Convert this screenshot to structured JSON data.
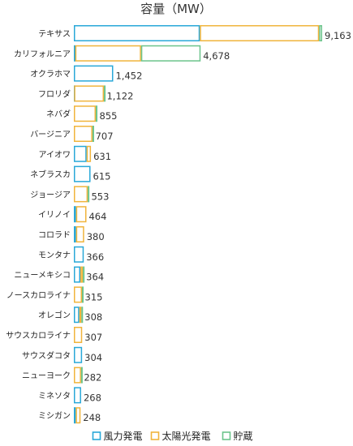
{
  "chart_data": {
    "type": "bar",
    "orientation": "horizontal",
    "stacked": true,
    "title": "容量（MW）",
    "categories": [
      "テキサス",
      "カリフォルニア",
      "オクラホマ",
      "フロリダ",
      "ネバダ",
      "バージニア",
      "アイオワ",
      "ネブラスカ",
      "ジョージア",
      "イリノイ",
      "コロラド",
      "モンタナ",
      "ニューメキシコ",
      "ノースカロライナ",
      "オレゴン",
      "サウスカロライナ",
      "サウスダコタ",
      "ニューヨーク",
      "ミネソタ",
      "ミシガン"
    ],
    "series": [
      {
        "name": "風力発電",
        "color": "#29a8d8",
        "values": [
          4650,
          50,
          1452,
          10,
          0,
          0,
          470,
          615,
          0,
          80,
          80,
          366,
          240,
          0,
          200,
          0,
          304,
          0,
          268,
          70
        ]
      },
      {
        "name": "太陽光発電",
        "color": "#f0b43c",
        "values": [
          4400,
          2430,
          0,
          1100,
          810,
          687,
          161,
          0,
          513,
          384,
          300,
          0,
          94,
          300,
          78,
          307,
          0,
          266,
          0,
          178
        ]
      },
      {
        "name": "貯蔵",
        "color": "#6cc48c",
        "values": [
          113,
          2198,
          0,
          12,
          45,
          20,
          0,
          0,
          40,
          0,
          0,
          0,
          30,
          15,
          30,
          0,
          0,
          16,
          0,
          0
        ]
      }
    ],
    "totals": [
      "9,163",
      "4,678",
      "1,452",
      "1,122",
      "855",
      "707",
      "631",
      "615",
      "553",
      "464",
      "380",
      "366",
      "364",
      "315",
      "308",
      "307",
      "304",
      "282",
      "268",
      "248"
    ],
    "xlim": [
      0,
      9163
    ],
    "grid": false,
    "legend_position": "bottom"
  }
}
